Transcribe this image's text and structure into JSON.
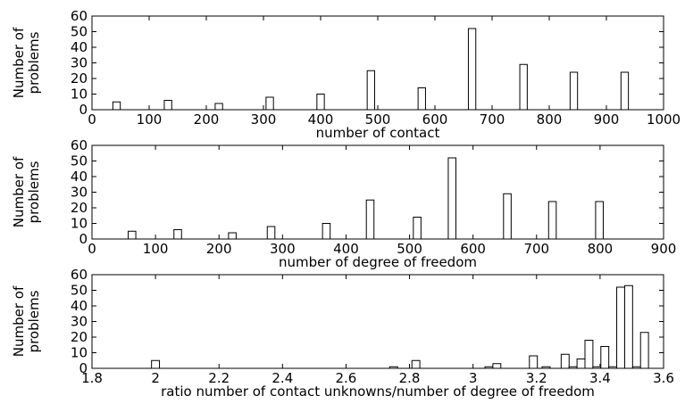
{
  "chart_data": [
    {
      "type": "bar",
      "xlabel": "number of contact",
      "ylabel": [
        "Number of",
        "problems"
      ],
      "xlim": [
        0,
        1000
      ],
      "ylim": [
        0,
        60
      ],
      "xticks": [
        0,
        100,
        200,
        300,
        400,
        500,
        600,
        700,
        800,
        900,
        1000
      ],
      "yticks": [
        0,
        10,
        20,
        30,
        40,
        50,
        60
      ],
      "bar_width": 13,
      "bars": [
        {
          "x": 43,
          "y": 5
        },
        {
          "x": 133,
          "y": 6
        },
        {
          "x": 222,
          "y": 4
        },
        {
          "x": 311,
          "y": 8
        },
        {
          "x": 400,
          "y": 10
        },
        {
          "x": 488,
          "y": 25
        },
        {
          "x": 577,
          "y": 14
        },
        {
          "x": 665,
          "y": 52
        },
        {
          "x": 755,
          "y": 29
        },
        {
          "x": 843,
          "y": 24
        },
        {
          "x": 932,
          "y": 24
        }
      ]
    },
    {
      "type": "bar",
      "xlabel": "number of degree of freedom",
      "ylabel": [
        "Number of",
        "problems"
      ],
      "xlim": [
        0,
        900
      ],
      "ylim": [
        0,
        60
      ],
      "xticks": [
        0,
        100,
        200,
        300,
        400,
        500,
        600,
        700,
        800,
        900
      ],
      "yticks": [
        0,
        10,
        20,
        30,
        40,
        50,
        60
      ],
      "bar_width": 12,
      "bars": [
        {
          "x": 63,
          "y": 5
        },
        {
          "x": 135,
          "y": 6
        },
        {
          "x": 221,
          "y": 4
        },
        {
          "x": 282,
          "y": 8
        },
        {
          "x": 369,
          "y": 10
        },
        {
          "x": 438,
          "y": 25
        },
        {
          "x": 512,
          "y": 14
        },
        {
          "x": 567,
          "y": 52
        },
        {
          "x": 654,
          "y": 29
        },
        {
          "x": 725,
          "y": 24
        },
        {
          "x": 799,
          "y": 24
        }
      ]
    },
    {
      "type": "bar",
      "xlabel": "ratio number of contact unknowns/number of degree of freedom",
      "ylabel": [
        "Number of",
        "problems"
      ],
      "xlim": [
        1.8,
        3.6
      ],
      "ylim": [
        0,
        60
      ],
      "xticks": [
        1.8,
        2,
        2.2,
        2.4,
        2.6,
        2.8,
        3,
        3.2,
        3.4,
        3.6
      ],
      "yticks": [
        0,
        10,
        20,
        30,
        40,
        50,
        60
      ],
      "bar_width": 0.025,
      "bars": [
        {
          "x": 2.0,
          "y": 5
        },
        {
          "x": 2.75,
          "y": 1
        },
        {
          "x": 2.82,
          "y": 5
        },
        {
          "x": 3.05,
          "y": 1
        },
        {
          "x": 3.075,
          "y": 3
        },
        {
          "x": 3.19,
          "y": 8
        },
        {
          "x": 3.23,
          "y": 1
        },
        {
          "x": 3.29,
          "y": 9
        },
        {
          "x": 3.315,
          "y": 1
        },
        {
          "x": 3.34,
          "y": 6
        },
        {
          "x": 3.365,
          "y": 18
        },
        {
          "x": 3.39,
          "y": 1
        },
        {
          "x": 3.415,
          "y": 14
        },
        {
          "x": 3.44,
          "y": 1
        },
        {
          "x": 3.465,
          "y": 52
        },
        {
          "x": 3.49,
          "y": 53
        },
        {
          "x": 3.515,
          "y": 1
        },
        {
          "x": 3.54,
          "y": 23
        }
      ]
    }
  ]
}
